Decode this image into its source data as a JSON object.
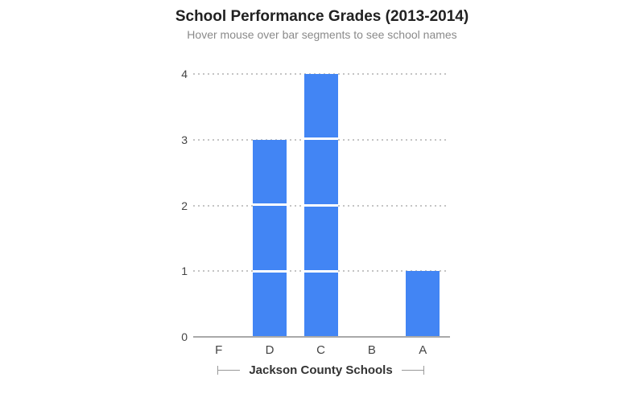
{
  "chart_data": {
    "type": "bar",
    "variant": "histogram-with-unit-segments",
    "title": "School Performance Grades (2013-2014)",
    "subtitle": "Hover mouse over bar segments to see school names",
    "categories": [
      "F",
      "D",
      "C",
      "B",
      "A"
    ],
    "values": [
      0,
      3,
      4,
      0,
      1
    ],
    "xlabel": "Jackson County Schools",
    "ylabel": "",
    "ylim": [
      0,
      4
    ],
    "yticks": [
      0,
      1,
      2,
      3,
      4
    ],
    "grid": "horizontal-dotted",
    "legend": "none",
    "bar_color": "#4285f4",
    "segment_separator_color": "#ffffff",
    "axis_line_color": "#a9a9a9",
    "grid_color": "#c4c4c4",
    "tick_label_color": "#444444",
    "title_color": "#212121",
    "subtitle_color": "#8a8a8a",
    "bracket_color": "#999999"
  }
}
